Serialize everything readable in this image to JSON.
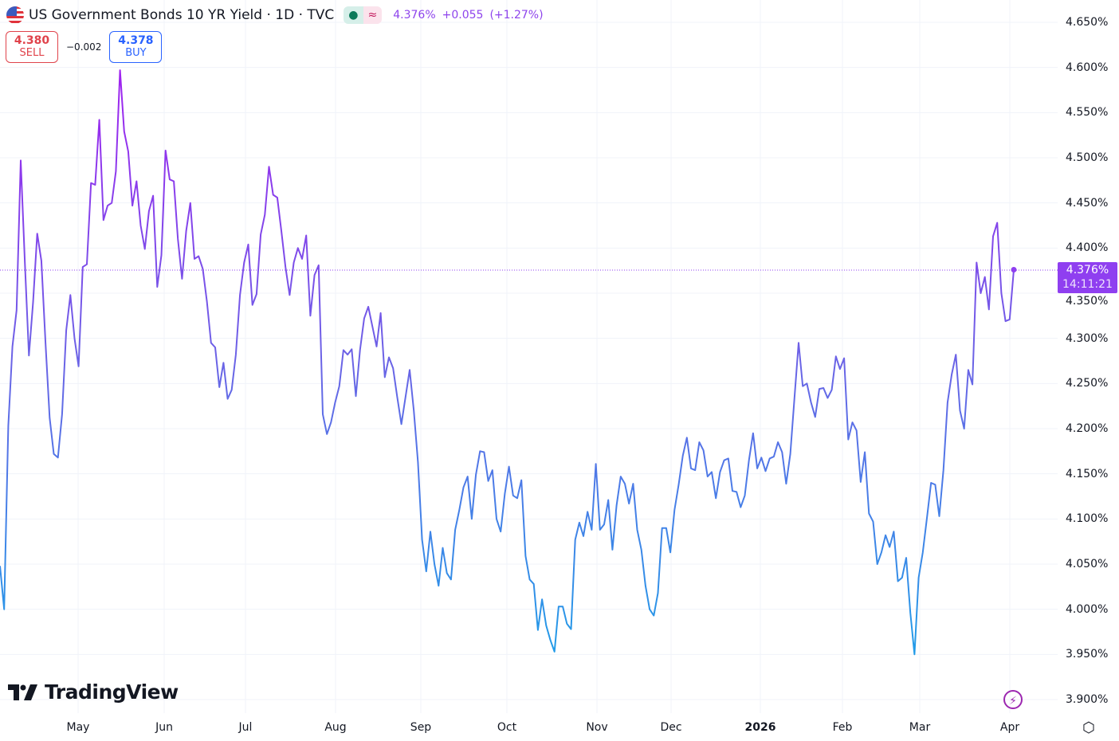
{
  "header": {
    "title": "US Government Bonds 10 YR Yield · 1D · TVC",
    "market_status_icon": "dot-icon",
    "realtime_icon": "approx-icon",
    "approx_glyph": "≈",
    "last": "4.376%",
    "change": "+0.055",
    "change_pct": "(+1.27%)"
  },
  "trade": {
    "sell_price": "4.380",
    "sell_label": "SELL",
    "spread": "−0.002",
    "buy_price": "4.378",
    "buy_label": "BUY"
  },
  "price_label": {
    "value": "4.376%",
    "time": "14:11:21"
  },
  "branding": {
    "logo_text": "TradingView"
  },
  "colors": {
    "high": "#a21ff0",
    "mid": "#6b63e6",
    "low": "#1e9ee8",
    "label_bg": "#8f3ff0"
  },
  "chart_data": {
    "type": "line",
    "title": "US Government Bonds 10 YR Yield · 1D · TVC",
    "ylim": [
      3.9,
      4.65
    ],
    "y_ticks": [
      "4.650%",
      "4.600%",
      "4.550%",
      "4.500%",
      "4.450%",
      "4.400%",
      "4.350%",
      "4.300%",
      "4.250%",
      "4.200%",
      "4.150%",
      "4.100%",
      "4.050%",
      "4.000%",
      "3.950%",
      "3.900%"
    ],
    "x_ticks": [
      "May",
      "Jun",
      "Jul",
      "Aug",
      "Sep",
      "Oct",
      "Nov",
      "Dec",
      "2026",
      "Feb",
      "Mar",
      "Apr"
    ],
    "grid": true,
    "last_value": 4.376,
    "values": [
      4.048,
      4.0,
      4.203,
      4.291,
      4.331,
      4.497,
      4.384,
      4.281,
      4.34,
      4.416,
      4.386,
      4.295,
      4.212,
      4.172,
      4.168,
      4.216,
      4.309,
      4.348,
      4.3,
      4.269,
      4.379,
      4.382,
      4.472,
      4.47,
      4.542,
      4.431,
      4.447,
      4.45,
      4.485,
      4.597,
      4.529,
      4.507,
      4.447,
      4.474,
      4.425,
      4.399,
      4.441,
      4.458,
      4.357,
      4.392,
      4.508,
      4.476,
      4.474,
      4.41,
      4.366,
      4.419,
      4.45,
      4.388,
      4.391,
      4.377,
      4.341,
      4.295,
      4.29,
      4.246,
      4.273,
      4.233,
      4.243,
      4.282,
      4.348,
      4.384,
      4.404,
      4.337,
      4.349,
      4.415,
      4.437,
      4.49,
      4.459,
      4.456,
      4.419,
      4.379,
      4.348,
      4.384,
      4.4,
      4.388,
      4.414,
      4.325,
      4.37,
      4.381,
      4.216,
      4.194,
      4.207,
      4.229,
      4.247,
      4.287,
      4.282,
      4.288,
      4.236,
      4.287,
      4.322,
      4.335,
      4.313,
      4.291,
      4.328,
      4.257,
      4.279,
      4.267,
      4.235,
      4.205,
      4.235,
      4.265,
      4.22,
      4.163,
      4.077,
      4.042,
      4.086,
      4.05,
      4.026,
      4.068,
      4.04,
      4.033,
      4.088,
      4.11,
      4.135,
      4.147,
      4.1,
      4.149,
      4.175,
      4.174,
      4.142,
      4.154,
      4.1,
      4.086,
      4.128,
      4.158,
      4.126,
      4.123,
      4.143,
      4.059,
      4.033,
      4.028,
      3.977,
      4.011,
      3.982,
      3.966,
      3.953,
      4.003,
      4.003,
      3.984,
      3.978,
      4.077,
      4.096,
      4.081,
      4.108,
      4.088,
      4.161,
      4.088,
      4.094,
      4.121,
      4.066,
      4.115,
      4.147,
      4.139,
      4.117,
      4.139,
      4.088,
      4.066,
      4.026,
      4.0,
      3.993,
      4.018,
      4.09,
      4.09,
      4.063,
      4.11,
      4.138,
      4.17,
      4.19,
      4.156,
      4.154,
      4.185,
      4.176,
      4.147,
      4.152,
      4.123,
      4.152,
      4.165,
      4.167,
      4.131,
      4.13,
      4.113,
      4.126,
      4.165,
      4.195,
      4.156,
      4.168,
      4.153,
      4.167,
      4.169,
      4.185,
      4.174,
      4.139,
      4.172,
      4.234,
      4.295,
      4.247,
      4.25,
      4.229,
      4.213,
      4.244,
      4.245,
      4.234,
      4.243,
      4.28,
      4.266,
      4.278,
      4.188,
      4.207,
      4.198,
      4.141,
      4.174,
      4.106,
      4.097,
      4.05,
      4.063,
      4.082,
      4.069,
      4.086,
      4.031,
      4.035,
      4.057,
      3.996,
      3.95,
      4.035,
      4.063,
      4.101,
      4.14,
      4.138,
      4.103,
      4.154,
      4.229,
      4.26,
      4.282,
      4.22,
      4.2,
      4.265,
      4.249,
      4.384,
      4.35,
      4.368,
      4.332,
      4.413,
      4.428,
      4.35,
      4.319,
      4.321,
      4.376
    ]
  }
}
